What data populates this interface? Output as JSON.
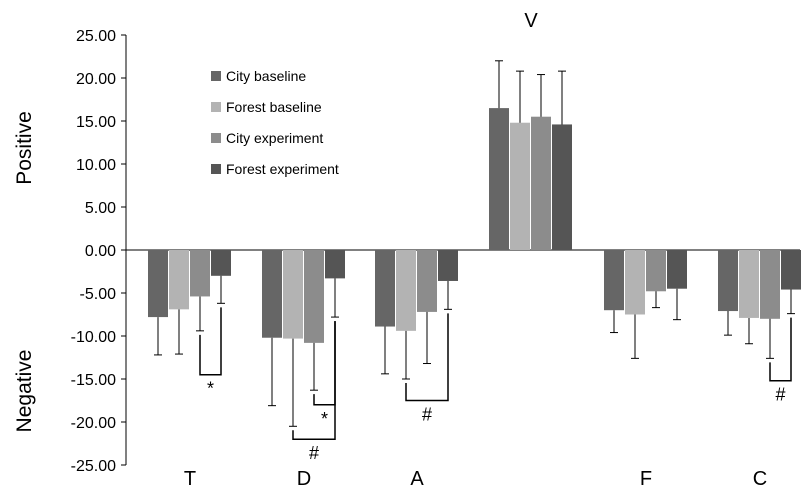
{
  "chart_data": {
    "type": "bar",
    "categories": [
      "T",
      "D",
      "A",
      "V",
      "F",
      "C"
    ],
    "ylim": [
      -25,
      25
    ],
    "yticks": [
      "25.00",
      "20.00",
      "15.00",
      "10.00",
      "5.00",
      "0.00",
      "-5.00",
      "-10.00",
      "-15.00",
      "-20.00",
      "-25.00"
    ],
    "ytick_values": [
      25,
      20,
      15,
      10,
      5,
      0,
      -5,
      -10,
      -15,
      -20,
      -25
    ],
    "y_region_labels": {
      "positive": "Positive",
      "negative": "Negative"
    },
    "legend_position": "top-left",
    "grid": false,
    "series": [
      {
        "name": "City baseline",
        "color": "#666666",
        "values": [
          -7.8,
          -10.2,
          -8.9,
          16.5,
          -7.0,
          -7.1
        ],
        "errors": [
          4.4,
          7.9,
          5.5,
          5.5,
          2.6,
          2.8
        ]
      },
      {
        "name": "Forest baseline",
        "color": "#b3b3b3",
        "values": [
          -6.9,
          -10.3,
          -9.4,
          14.8,
          -7.5,
          -7.9
        ],
        "errors": [
          5.2,
          10.2,
          5.6,
          6.0,
          5.1,
          3.0
        ]
      },
      {
        "name": "City experiment",
        "color": "#8c8c8c",
        "values": [
          -5.4,
          -10.8,
          -7.2,
          15.5,
          -4.8,
          -8.0
        ],
        "errors": [
          4.0,
          5.5,
          6.0,
          4.9,
          1.9,
          4.6
        ]
      },
      {
        "name": "Forest experiment",
        "color": "#555555",
        "values": [
          -3.0,
          -3.3,
          -3.6,
          14.6,
          -4.5,
          -4.6
        ],
        "errors": [
          3.2,
          4.5,
          3.3,
          6.2,
          3.6,
          2.8
        ]
      }
    ],
    "significance": [
      {
        "category": "T",
        "from_series": 2,
        "to_series": 3,
        "symbol": "*",
        "y": -14.5
      },
      {
        "category": "D",
        "from_series": 2,
        "to_series": 3,
        "symbol": "*",
        "y": -18.0
      },
      {
        "category": "D",
        "from_series": 1,
        "to_series": 3,
        "symbol": "#",
        "y": -22.0
      },
      {
        "category": "A",
        "from_series": 1,
        "to_series": 3,
        "symbol": "#",
        "y": -17.5
      },
      {
        "category": "C",
        "from_series": 2,
        "to_series": 3,
        "symbol": "#",
        "y": -15.2
      }
    ]
  }
}
